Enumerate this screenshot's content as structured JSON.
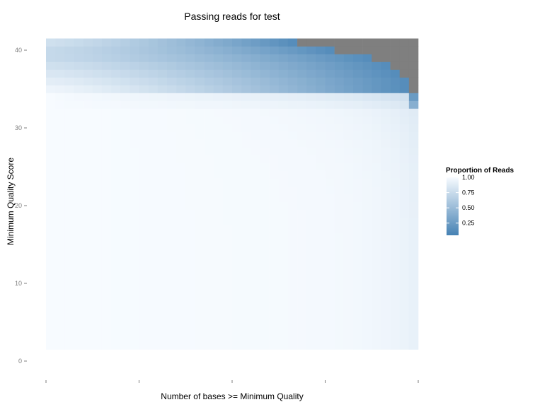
{
  "chart_data": {
    "type": "heatmap",
    "title": "Passing reads for test",
    "xlabel": "Number of bases >= Minimum Quality",
    "ylabel": "Minimum Quality Score",
    "y_ticks": [
      0,
      10,
      20,
      30,
      40
    ],
    "x_ticks": [
      "",
      "",
      "",
      "",
      ""
    ],
    "ylim": [
      -2,
      43
    ],
    "y_cells": [
      2,
      41
    ],
    "x_cells": 40,
    "colorscale": {
      "low": "#4682b4",
      "high": "#f7fbff",
      "missing": "#7f7f7f",
      "range": [
        0.12,
        1.0
      ]
    },
    "cutoffs": [
      {
        "y": 41,
        "x": 27,
        "start_value": 0.8
      },
      {
        "y": 40,
        "x": 31,
        "start_value": 0.75
      },
      {
        "y": 39,
        "x": 35,
        "start_value": 0.75
      },
      {
        "y": 38,
        "x": 37,
        "start_value": 0.8
      },
      {
        "y": 37,
        "x": 38,
        "start_value": 0.85
      },
      {
        "y": 36,
        "x": 39,
        "start_value": 0.9
      },
      {
        "y": 35,
        "x": 39,
        "start_value": 0.95
      }
    ],
    "legend": {
      "title": "Proportion of Reads",
      "labels": [
        "1.00",
        "0.75",
        "0.50",
        "0.25"
      ],
      "values": [
        1.0,
        0.75,
        0.5,
        0.25
      ],
      "placement": "right"
    }
  }
}
